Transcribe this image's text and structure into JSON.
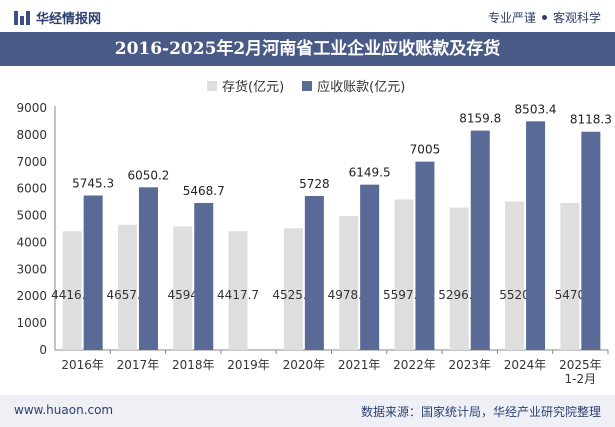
{
  "header": {
    "brand": "华经情报网",
    "tag_left": "专业严谨",
    "tag_right": "客观科学"
  },
  "footer": {
    "website": "www.huaon.com",
    "source": "数据来源：国家统计局，华经产业研究院整理"
  },
  "colors": {
    "inventory": "#dedede",
    "receivables": "#5a6a97",
    "title_bg": "#4a5a87"
  },
  "chart_data": {
    "type": "bar",
    "title": "2016-2025年2月河南省工业企业应收账款及存货",
    "categories": [
      "2016年",
      "2017年",
      "2018年",
      "2019年",
      "2020年",
      "2021年",
      "2022年",
      "2023年",
      "2024年",
      "2025年\n1-2月"
    ],
    "series": [
      {
        "name": "存货(亿元)",
        "values": [
          4416.5,
          4657.2,
          4594,
          4417.7,
          4525.1,
          4978.5,
          5597.2,
          5296.2,
          5520,
          5470
        ]
      },
      {
        "name": "应收账款(亿元)",
        "values": [
          5745.3,
          6050.2,
          5468.7,
          null,
          5728,
          6149.5,
          7005,
          8159.8,
          8503.4,
          8118.3
        ]
      }
    ],
    "ylim": [
      0,
      9000
    ],
    "yticks": [
      0,
      1000,
      2000,
      3000,
      4000,
      5000,
      6000,
      7000,
      8000,
      9000
    ],
    "legend": "top-center",
    "grid": false
  }
}
